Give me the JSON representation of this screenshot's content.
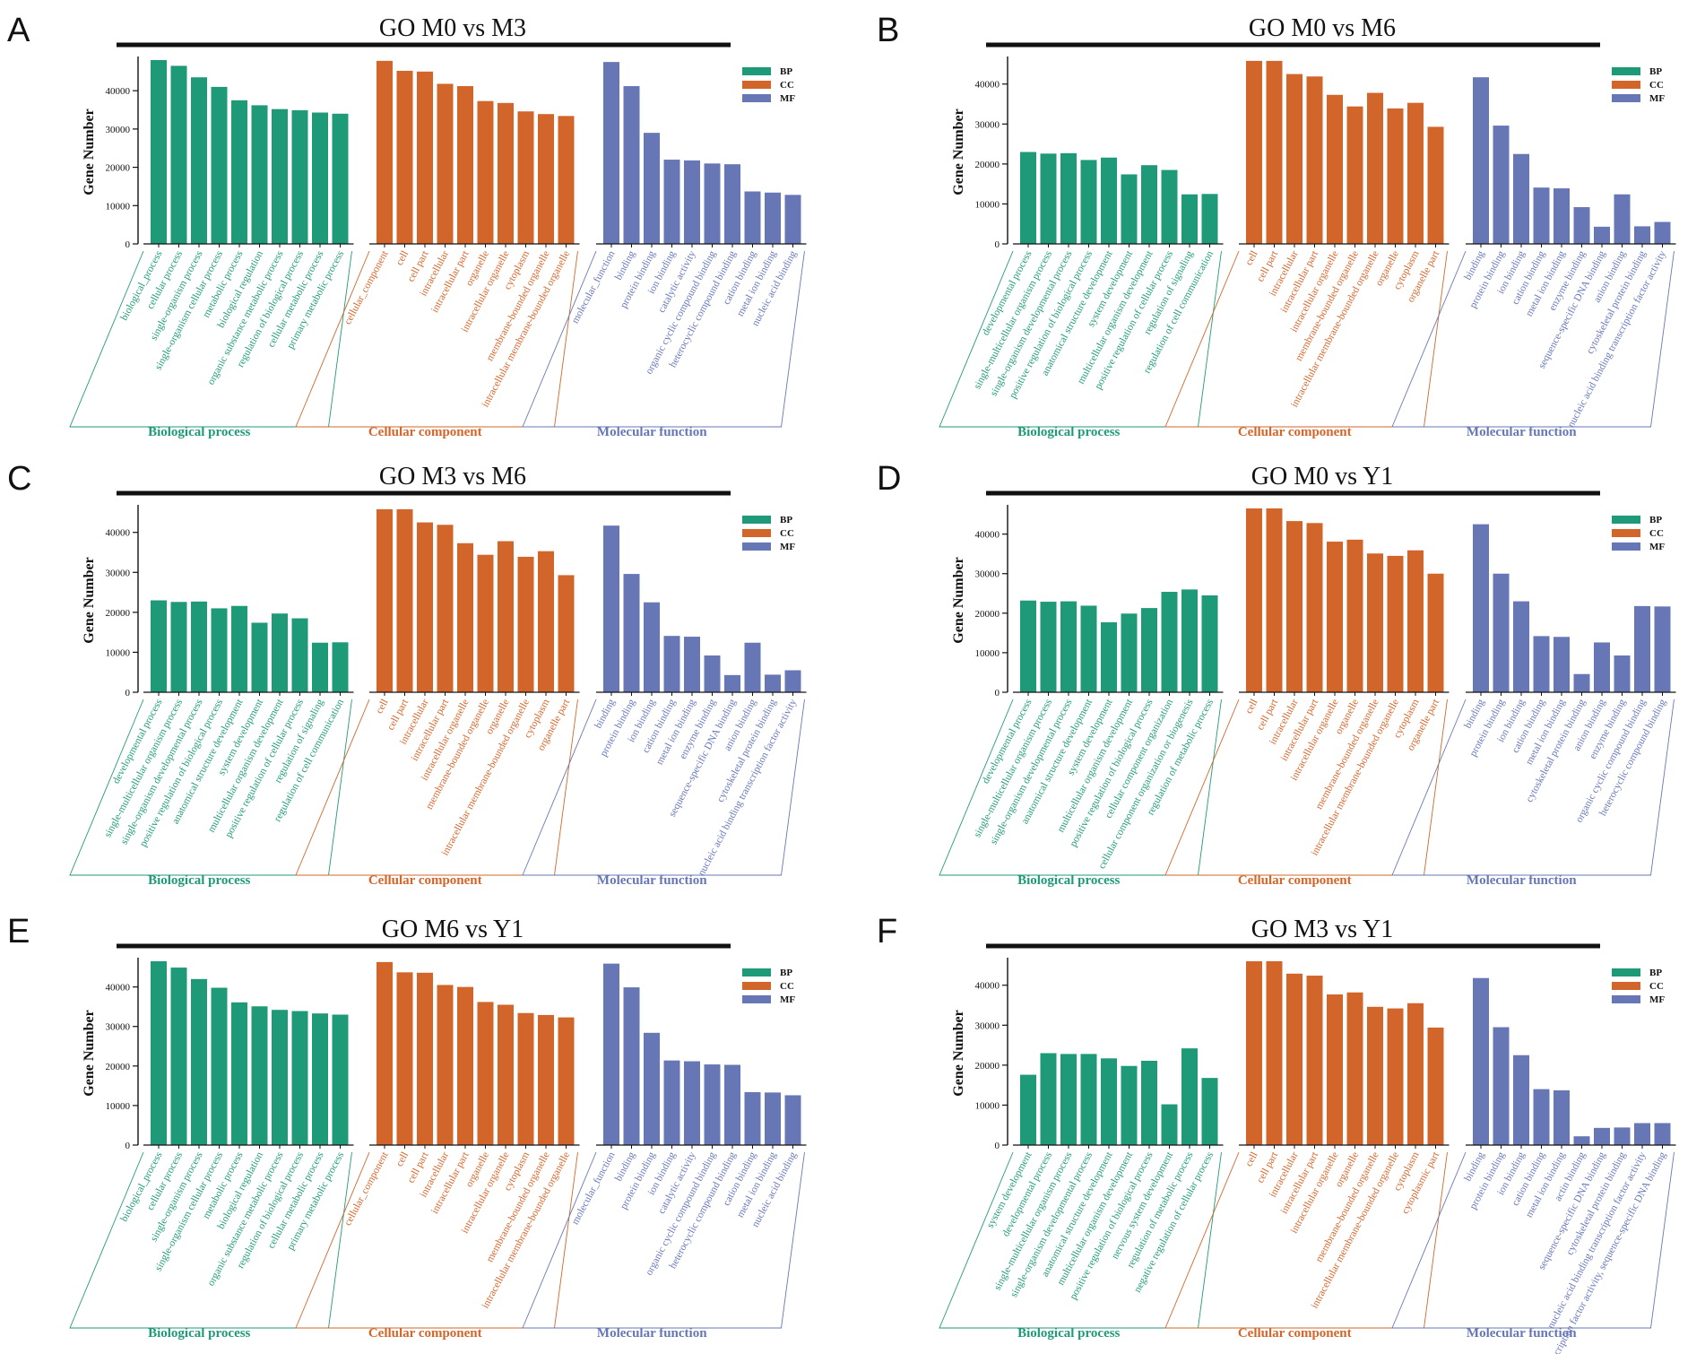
{
  "figure": {
    "colors": {
      "BP": "#1f9a78",
      "CC": "#d2652a",
      "MF": "#6777b6"
    },
    "legend_labels": [
      "BP",
      "CC",
      "MF"
    ],
    "group_labels": [
      "Biological process",
      "Cellular component",
      "Molecular function"
    ],
    "y_axis_label": "Gene Number"
  },
  "chart_data": [
    {
      "panel": "A",
      "type": "bar",
      "title": "GO  M0 vs M3",
      "ylabel": "Gene Number",
      "ylim": [
        0,
        48000
      ],
      "yticks": [
        0,
        10000,
        20000,
        30000,
        40000
      ],
      "groups": [
        {
          "key": "BP",
          "name": "Biological process",
          "categories": [
            "biological_process",
            "cellular process",
            "single-organism process",
            "single-organism cellular process",
            "metabolic process",
            "biological regulation",
            "organic substance metabolic process",
            "regulation of biological process",
            "cellular metabolic process",
            "primary metabolic process"
          ],
          "values": [
            48000,
            46500,
            43500,
            41000,
            37500,
            36200,
            35200,
            34900,
            34300,
            34000
          ]
        },
        {
          "key": "CC",
          "name": "Cellular component",
          "categories": [
            "cellular_component",
            "cell",
            "cell part",
            "intracellular",
            "intracellular part",
            "organelle",
            "intracellular organelle",
            "cytoplasm",
            "membrane-bounded organelle",
            "intracellular membrane-bounded organelle"
          ],
          "values": [
            47800,
            45200,
            45000,
            41800,
            41200,
            37300,
            36800,
            34600,
            33900,
            33400
          ]
        },
        {
          "key": "MF",
          "name": "Molecular function",
          "categories": [
            "molecular_function",
            "binding",
            "protein binding",
            "ion binding",
            "catalytic activity",
            "organic cyclic compound binding",
            "heterocyclic compound binding",
            "cation binding",
            "metal ion binding",
            "nucleic acid binding"
          ],
          "values": [
            47500,
            41200,
            29000,
            22000,
            21800,
            21000,
            20800,
            13700,
            13400,
            12800
          ]
        }
      ]
    },
    {
      "panel": "B",
      "type": "bar",
      "title": "GO M0 vs M6",
      "ylabel": "Gene Number",
      "ylim": [
        0,
        46000
      ],
      "yticks": [
        0,
        10000,
        20000,
        30000,
        40000
      ],
      "groups": [
        {
          "key": "BP",
          "name": "Biological process",
          "categories": [
            "developmental process",
            "single-multicellular organism process",
            "single-organism developmental process",
            "positive regulation of biological process",
            "anatomical structure development",
            "system development",
            "multicellular organism development",
            "positive regulation of cellular process",
            "regulation of signaling",
            "regulation of cell communication"
          ],
          "values": [
            23000,
            22600,
            22700,
            21000,
            21600,
            17400,
            19700,
            18500,
            12400,
            12500
          ]
        },
        {
          "key": "CC",
          "name": "Cellular component",
          "categories": [
            "cell",
            "cell part",
            "intracellular",
            "intracellular part",
            "intracellular organelle",
            "membrane-bounded organelle",
            "intracellular membrane-bounded organelle",
            "organelle",
            "cytoplasm",
            "organelle part"
          ],
          "values": [
            45800,
            45800,
            42500,
            41900,
            37300,
            34400,
            37800,
            33900,
            35300,
            29300
          ]
        },
        {
          "key": "MF",
          "name": "Molecular function",
          "categories": [
            "binding",
            "protein binding",
            "ion binding",
            "cation binding",
            "metal ion binding",
            "enzyme binding",
            "sequence-specific DNA binding",
            "anion binding",
            "cytoskeletal protein binding",
            "nucleic acid binding transcription factor activity"
          ],
          "values": [
            41700,
            29600,
            22500,
            14100,
            13900,
            9200,
            4300,
            12400,
            4400,
            5500
          ]
        }
      ]
    },
    {
      "panel": "C",
      "type": "bar",
      "title": "GO M3 vs M6",
      "ylabel": "Gene Number",
      "ylim": [
        0,
        46000
      ],
      "yticks": [
        0,
        10000,
        20000,
        30000,
        40000
      ],
      "groups": [
        {
          "key": "BP",
          "name": "Biological process",
          "categories": [
            "developmental process",
            "single-multicellular organism process",
            "single-organism developmental process",
            "positive regulation of biological process",
            "anatomical structure development",
            "system development",
            "multicellular organism development",
            "positive regulation of cellular process",
            "regulation of signaling",
            "regulation of cell communication"
          ],
          "values": [
            23000,
            22600,
            22700,
            21000,
            21600,
            17400,
            19700,
            18500,
            12400,
            12500
          ]
        },
        {
          "key": "CC",
          "name": "Cellular component",
          "categories": [
            "cell",
            "cell part",
            "intracellular",
            "intracellular part",
            "intracellular organelle",
            "membrane-bounded organelle",
            "organelle",
            "intracellular membrane-bounded organelle",
            "cytoplasm",
            "organelle part"
          ],
          "values": [
            45800,
            45800,
            42500,
            41900,
            37300,
            34400,
            37800,
            33900,
            35300,
            29300
          ]
        },
        {
          "key": "MF",
          "name": "Molecular function",
          "categories": [
            "binding",
            "protein binding",
            "ion binding",
            "cation binding",
            "metal ion binding",
            "enzyme binding",
            "sequence-specific DNA binding",
            "anion binding",
            "cytoskeletal protein binding",
            "nucleic acid binding transcription factor activity"
          ],
          "values": [
            41700,
            29600,
            22500,
            14100,
            13900,
            9200,
            4300,
            12400,
            4400,
            5500
          ]
        }
      ]
    },
    {
      "panel": "D",
      "type": "bar",
      "title": "GO M0 vs Y1",
      "ylabel": "Gene Number",
      "ylim": [
        0,
        46500
      ],
      "yticks": [
        0,
        10000,
        20000,
        30000,
        40000
      ],
      "groups": [
        {
          "key": "BP",
          "name": "Biological process",
          "categories": [
            "developmental process",
            "single-multicellular organism process",
            "single-organism developmental process",
            "anatomical structure development",
            "system development",
            "multicellular organism development",
            "positive regulation of biological process",
            "cellular component organization",
            "cellular component organization or biogenesis",
            "regulation of metabolic process"
          ],
          "values": [
            23200,
            22900,
            23000,
            21900,
            17700,
            19900,
            21300,
            25400,
            26000,
            24500
          ]
        },
        {
          "key": "CC",
          "name": "Cellular component",
          "categories": [
            "cell",
            "cell part",
            "intracellular",
            "intracellular part",
            "intracellular organelle",
            "organelle",
            "membrane-bounded organelle",
            "intracellular membrane-bounded organelle",
            "cytoplasm",
            "organelle part"
          ],
          "values": [
            46500,
            46500,
            43300,
            42800,
            38100,
            38600,
            35100,
            34500,
            35900,
            30000
          ]
        },
        {
          "key": "MF",
          "name": "Molecular function",
          "categories": [
            "binding",
            "protein binding",
            "ion binding",
            "cation binding",
            "metal ion binding",
            "cytoskeletal protein binding",
            "anion binding",
            "enzyme binding",
            "organic cyclic compound binding",
            "heterocyclic compound binding"
          ],
          "values": [
            42500,
            30000,
            23000,
            14200,
            14000,
            4600,
            12600,
            9300,
            21800,
            21700
          ]
        }
      ]
    },
    {
      "panel": "E",
      "type": "bar",
      "title": "GO M6 vs Y1",
      "ylabel": "Gene Number",
      "ylim": [
        0,
        46500
      ],
      "yticks": [
        0,
        10000,
        20000,
        30000,
        40000
      ],
      "groups": [
        {
          "key": "BP",
          "name": "Biological process",
          "categories": [
            "biological_process",
            "cellular process",
            "single-organism process",
            "single-organism cellular process",
            "metabolic process",
            "biological regulation",
            "organic substance metabolic process",
            "regulation of biological process",
            "cellular metabolic process",
            "primary metabolic process"
          ],
          "values": [
            46500,
            44900,
            42000,
            39800,
            36100,
            35100,
            34200,
            33900,
            33300,
            33000
          ]
        },
        {
          "key": "CC",
          "name": "Cellular component",
          "categories": [
            "cellular_component",
            "cell",
            "cell part",
            "intracellular",
            "intracellular part",
            "organelle",
            "intracellular organelle",
            "cytoplasm",
            "membrane-bounded organelle",
            "intracellular membrane-bounded organelle"
          ],
          "values": [
            46300,
            43700,
            43600,
            40500,
            40000,
            36200,
            35500,
            33400,
            32900,
            32300
          ]
        },
        {
          "key": "MF",
          "name": "Molecular function",
          "categories": [
            "molecular_function",
            "binding",
            "protein binding",
            "ion binding",
            "catalytic activity",
            "organic cyclic compound binding",
            "heterocyclic compound binding",
            "cation binding",
            "metal ion binding",
            "nucleic acid binding"
          ],
          "values": [
            45900,
            39900,
            28400,
            21400,
            21200,
            20400,
            20300,
            13400,
            13300,
            12600
          ]
        }
      ]
    },
    {
      "panel": "F",
      "type": "bar",
      "title": "GO M3 vs Y1",
      "ylabel": "Gene Number",
      "ylim": [
        0,
        46000
      ],
      "yticks": [
        0,
        10000,
        20000,
        30000,
        40000
      ],
      "groups": [
        {
          "key": "BP",
          "name": "Biological process",
          "categories": [
            "system development",
            "developmental process",
            "single-multicellular organism process",
            "single-organism developmental process",
            "anatomical structure development",
            "multicellular organism development",
            "positive regulation of biological process",
            "nervous system development",
            "regulation of metabolic process",
            "negative regulation of cellular process"
          ],
          "values": [
            17600,
            23000,
            22800,
            22800,
            21700,
            19800,
            21100,
            10200,
            24200,
            16800
          ]
        },
        {
          "key": "CC",
          "name": "Cellular component",
          "categories": [
            "cell",
            "cell part",
            "intracellular",
            "intracellular part",
            "intracellular organelle",
            "organelle",
            "membrane-bounded organelle",
            "intracellular membrane-bounded organelle",
            "cytoplasm",
            "cytoplasmic part"
          ],
          "values": [
            46000,
            46000,
            42900,
            42400,
            37700,
            38200,
            34600,
            34200,
            35500,
            29400
          ]
        },
        {
          "key": "MF",
          "name": "Molecular function",
          "categories": [
            "binding",
            "protein binding",
            "ion binding",
            "cation binding",
            "metal ion binding",
            "actin binding",
            "sequence-specific DNA binding",
            "cytoskeletal protein binding",
            "nucleic acid binding transcription factor activity",
            "transcription factor activity, sequence-specific DNA binding"
          ],
          "values": [
            41800,
            29500,
            22500,
            14000,
            13700,
            2200,
            4300,
            4400,
            5500,
            5500
          ]
        }
      ]
    }
  ]
}
